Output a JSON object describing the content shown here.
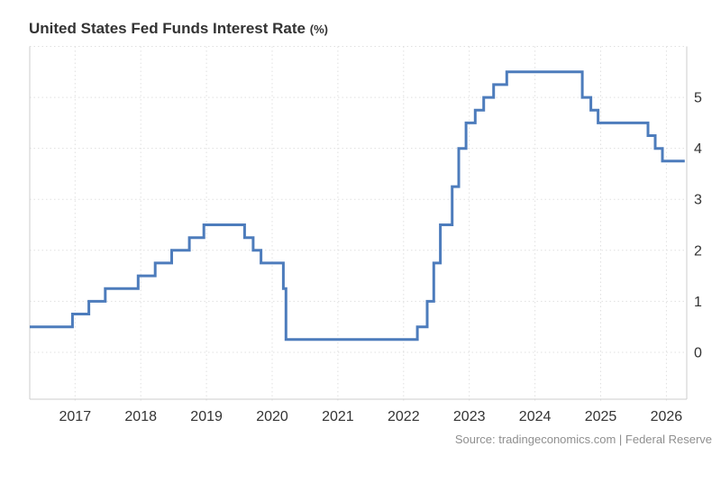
{
  "page": {
    "title": "United States Fed Funds Interest Rate",
    "title_unit": "(%)",
    "source": "Source: tradingeconomics.com | Federal Reserve"
  },
  "colors": {
    "line": "#4d7cbc",
    "grid": "#e0e0e0",
    "border": "#cccccc",
    "axis_text": "#333333",
    "source_text": "#8f8f8f"
  },
  "chart_data": {
    "type": "line",
    "step": "after",
    "title": "United States Fed Funds Interest Rate (%)",
    "xlabel": "",
    "ylabel": "",
    "x_ticks": [
      2017,
      2018,
      2019,
      2020,
      2021,
      2022,
      2023,
      2024,
      2025,
      2026
    ],
    "y_ticks": [
      0,
      1,
      2,
      3,
      4,
      5
    ],
    "top_gridline": 6,
    "xlim": [
      2016.31,
      2026.31
    ],
    "ylim": [
      -0.92,
      6.0
    ],
    "grid": "dotted",
    "y_axis_side": "right",
    "legend": "none",
    "series": [
      {
        "name": "Fed Funds Interest Rate (%)",
        "color": "#4d7cbc",
        "points": [
          [
            2016.31,
            0.5
          ],
          [
            2016.96,
            0.75
          ],
          [
            2017.21,
            1.0
          ],
          [
            2017.46,
            1.25
          ],
          [
            2017.96,
            1.5
          ],
          [
            2018.22,
            1.75
          ],
          [
            2018.47,
            2.0
          ],
          [
            2018.74,
            2.25
          ],
          [
            2018.96,
            2.5
          ],
          [
            2019.58,
            2.25
          ],
          [
            2019.71,
            2.0
          ],
          [
            2019.83,
            1.75
          ],
          [
            2020.17,
            1.25
          ],
          [
            2020.21,
            0.25
          ],
          [
            2022.21,
            0.5
          ],
          [
            2022.36,
            1.0
          ],
          [
            2022.46,
            1.75
          ],
          [
            2022.56,
            2.5
          ],
          [
            2022.74,
            3.25
          ],
          [
            2022.84,
            4.0
          ],
          [
            2022.95,
            4.5
          ],
          [
            2023.09,
            4.75
          ],
          [
            2023.22,
            5.0
          ],
          [
            2023.37,
            5.25
          ],
          [
            2023.57,
            5.5
          ],
          [
            2024.72,
            5.0
          ],
          [
            2024.85,
            4.75
          ],
          [
            2024.96,
            4.5
          ],
          [
            2025.72,
            4.25
          ],
          [
            2025.83,
            4.0
          ],
          [
            2025.94,
            3.75
          ],
          [
            2026.28,
            3.75
          ]
        ]
      }
    ]
  }
}
